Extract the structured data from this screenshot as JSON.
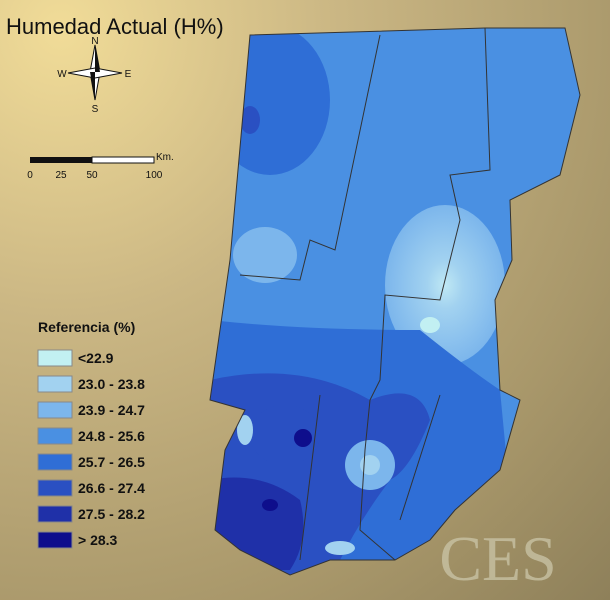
{
  "title": "Humedad Actual (H%)",
  "compass": {
    "north": "N",
    "south": "S",
    "west": "W",
    "east": "E"
  },
  "scale": {
    "unit": "Km.",
    "ticks": [
      "0",
      "25",
      "50",
      "100"
    ]
  },
  "legend": {
    "title": "Referencia (%)",
    "items": [
      {
        "label": "<22.9",
        "color": "#c2f0f2"
      },
      {
        "label": "23.0 - 23.8",
        "color": "#a2d2f0"
      },
      {
        "label": "23.9 - 24.7",
        "color": "#7cb6ec"
      },
      {
        "label": "24.8 - 25.6",
        "color": "#4a90e2"
      },
      {
        "label": "25.7 - 26.5",
        "color": "#2f6ed6"
      },
      {
        "label": "26.6 - 27.4",
        "color": "#2a50c2"
      },
      {
        "label": "27.5 - 28.2",
        "color": "#1f30a8"
      },
      {
        "label": "> 28.3",
        "color": "#0e0e8c"
      }
    ]
  },
  "logo": "CES"
}
